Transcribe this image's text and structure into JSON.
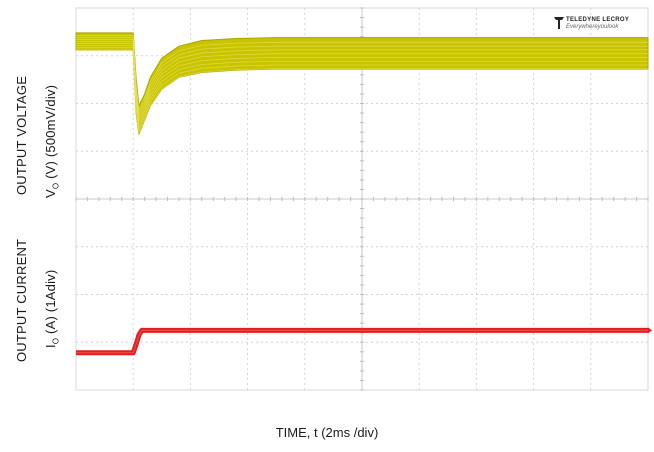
{
  "chart_data": {
    "type": "line",
    "title": "",
    "divisions": {
      "x": 10,
      "y": 8
    },
    "time_per_div_ms": 2,
    "voltage": {
      "axis_label_line1": "OUTPUT VOLTAGE",
      "axis_label_line2_pre": "V",
      "axis_label_line2_sub": "O",
      "axis_label_line2_post": " (V) (500mV/div)",
      "color": "#c9c400",
      "x_div": [
        0,
        1.0,
        1.05,
        1.1,
        1.2,
        1.3,
        1.5,
        1.8,
        2.2,
        2.8,
        3.5,
        5,
        7,
        10
      ],
      "y_top_div": [
        0.52,
        0.52,
        1.45,
        2.05,
        1.8,
        1.45,
        1.05,
        0.8,
        0.68,
        0.64,
        0.62,
        0.62,
        0.62,
        0.62
      ],
      "y_bottom_div": [
        0.88,
        0.88,
        2.2,
        2.65,
        2.35,
        2.05,
        1.7,
        1.45,
        1.35,
        1.3,
        1.28,
        1.28,
        1.28,
        1.28
      ]
    },
    "current": {
      "axis_label_line1": "OUTPUT CURRENT",
      "axis_label_line2_pre": "I",
      "axis_label_line2_sub": "O",
      "axis_label_line2_post": " (A) (1Adiv)",
      "color": "#e02020",
      "x_div": [
        0,
        1.0,
        1.05,
        1.1,
        1.15,
        10
      ],
      "y_div": [
        7.22,
        7.22,
        7.05,
        6.85,
        6.75,
        6.75
      ]
    },
    "xlabel": "TIME, t (2ms /div)"
  },
  "logo": {
    "brand": "TELEDYNE LECROY",
    "tagline": "Everywhereyoulook"
  }
}
